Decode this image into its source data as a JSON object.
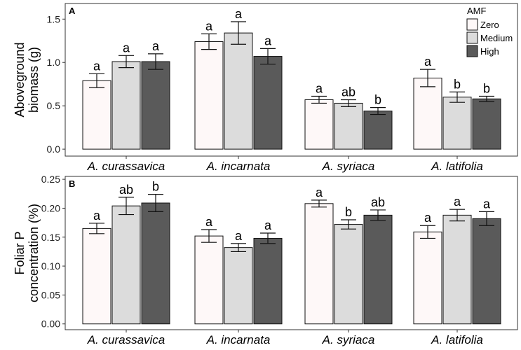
{
  "colors": {
    "Zero": "#fef8f8",
    "Medium": "#dcdcdc",
    "High": "#5a5a5a"
  },
  "legend": {
    "title": "AMF",
    "entries": [
      "Zero",
      "Medium",
      "High"
    ]
  },
  "chart_data": [
    {
      "type": "bar",
      "panel": "A",
      "ylabel": [
        "Aboveground",
        "biomass (g)"
      ],
      "ylim": [
        -0.08,
        1.68
      ],
      "yticks": [
        "0.0",
        "0.5",
        "1.0",
        "1.5"
      ],
      "ytick_values": [
        0,
        0.5,
        1.0,
        1.5
      ],
      "categories": [
        "A. curassavica",
        "A. incarnata",
        "A. syriaca",
        "A. latifolia"
      ],
      "series": [
        {
          "name": "Zero",
          "values": [
            0.79,
            1.24,
            0.57,
            0.82
          ],
          "err": [
            0.08,
            0.09,
            0.04,
            0.1
          ],
          "letters": [
            "a",
            "a",
            "a",
            "a"
          ]
        },
        {
          "name": "Medium",
          "values": [
            1.01,
            1.34,
            0.53,
            0.6
          ],
          "err": [
            0.07,
            0.13,
            0.04,
            0.06
          ],
          "letters": [
            "a",
            "a",
            "ab",
            "b"
          ]
        },
        {
          "name": "High",
          "values": [
            1.01,
            1.07,
            0.44,
            0.58
          ],
          "err": [
            0.09,
            0.09,
            0.04,
            0.03
          ],
          "letters": [
            "a",
            "a",
            "b",
            "b"
          ]
        }
      ]
    },
    {
      "type": "bar",
      "panel": "B",
      "ylabel": [
        "Foliar P",
        "concentration (%)"
      ],
      "ylim": [
        -0.01,
        0.255
      ],
      "yticks": [
        "0.00",
        "0.05",
        "0.10",
        "0.15",
        "0.20",
        "0.25"
      ],
      "ytick_values": [
        0,
        0.05,
        0.1,
        0.15,
        0.2,
        0.25
      ],
      "categories": [
        "A. curassavica",
        "A. incarnata",
        "A. syriaca",
        "A. latifolia"
      ],
      "series": [
        {
          "name": "Zero",
          "values": [
            0.165,
            0.152,
            0.208,
            0.159
          ],
          "err": [
            0.009,
            0.011,
            0.006,
            0.011
          ],
          "letters": [
            "a",
            "a",
            "a",
            "a"
          ]
        },
        {
          "name": "Medium",
          "values": [
            0.204,
            0.132,
            0.172,
            0.188
          ],
          "err": [
            0.015,
            0.007,
            0.008,
            0.01
          ],
          "letters": [
            "ab",
            "a",
            "b",
            "a"
          ]
        },
        {
          "name": "High",
          "values": [
            0.209,
            0.148,
            0.188,
            0.182
          ],
          "err": [
            0.015,
            0.009,
            0.009,
            0.012
          ],
          "letters": [
            "b",
            "a",
            "ab",
            "a"
          ]
        }
      ]
    }
  ]
}
